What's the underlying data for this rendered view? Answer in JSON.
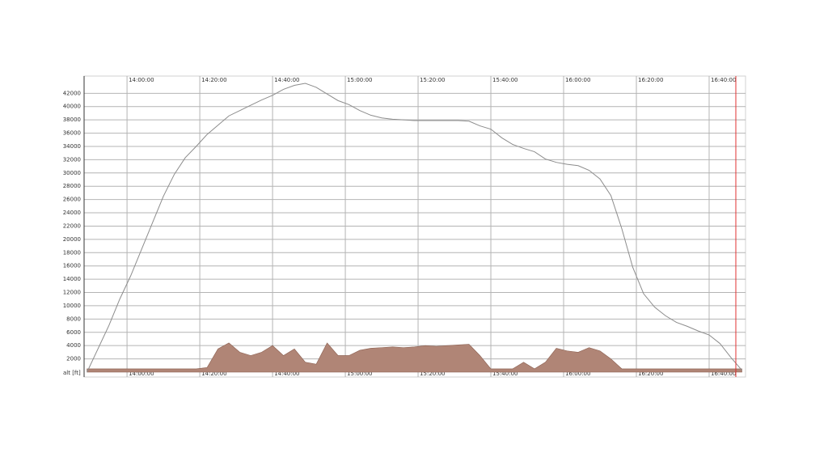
{
  "chart_data": {
    "type": "line",
    "y_label": "alt [ft]",
    "x": [
      "13:49:00",
      "13:52:00",
      "13:55:00",
      "13:58:00",
      "14:01:00",
      "14:04:00",
      "14:07:00",
      "14:10:00",
      "14:13:00",
      "14:16:00",
      "14:19:00",
      "14:22:00",
      "14:25:00",
      "14:28:00",
      "14:31:00",
      "14:34:00",
      "14:37:00",
      "14:40:00",
      "14:43:00",
      "14:46:00",
      "14:49:00",
      "14:52:00",
      "14:55:00",
      "14:58:00",
      "15:01:00",
      "15:04:00",
      "15:07:00",
      "15:10:00",
      "15:13:00",
      "15:16:00",
      "15:19:00",
      "15:22:00",
      "15:25:00",
      "15:28:00",
      "15:31:00",
      "15:34:00",
      "15:37:00",
      "15:40:00",
      "15:43:00",
      "15:46:00",
      "15:49:00",
      "15:52:00",
      "15:55:00",
      "15:58:00",
      "16:01:00",
      "16:04:00",
      "16:07:00",
      "16:10:00",
      "16:13:00",
      "16:16:00",
      "16:19:00",
      "16:22:00",
      "16:25:00",
      "16:28:00",
      "16:31:00",
      "16:34:00",
      "16:37:00",
      "16:40:00",
      "16:43:00",
      "16:46:00",
      "16:49:00"
    ],
    "series": [
      {
        "type": "area",
        "color": "#b08576",
        "values": [
          500,
          500,
          500,
          500,
          500,
          500,
          500,
          500,
          500,
          500,
          500,
          700,
          3500,
          4400,
          3000,
          2500,
          3000,
          4000,
          2500,
          3500,
          1500,
          1200,
          4400,
          2500,
          2500,
          3300,
          3600,
          3700,
          3800,
          3700,
          3800,
          4000,
          3900,
          4000,
          4100,
          4200,
          2500,
          500,
          500,
          500,
          1500,
          500,
          1500,
          3600,
          3200,
          3000,
          3700,
          3200,
          2000,
          500,
          500,
          500,
          500,
          500,
          500,
          500,
          500,
          500,
          500,
          500,
          500
        ]
      },
      {
        "type": "line",
        "color": "#8c8c8c",
        "values": [
          0,
          3500,
          7000,
          11000,
          14500,
          18500,
          22500,
          26500,
          29800,
          32300,
          34000,
          35800,
          37200,
          38600,
          39400,
          40200,
          41000,
          41700,
          42600,
          43200,
          43500,
          42900,
          41900,
          40900,
          40300,
          39400,
          38700,
          38300,
          38100,
          38000,
          37900,
          37900,
          37900,
          37900,
          37900,
          37800,
          37100,
          36600,
          35300,
          34300,
          33700,
          33200,
          32100,
          31600,
          31300,
          31100,
          30400,
          29100,
          26600,
          21600,
          15800,
          11800,
          9800,
          8500,
          7500,
          6900,
          6200,
          5600,
          4300,
          2200,
          300
        ]
      }
    ],
    "xlim": [
      "13:48:12",
      "16:50:00"
    ],
    "xticks": [
      "14:00:00",
      "14:20:00",
      "14:40:00",
      "15:00:00",
      "15:20:00",
      "15:40:00",
      "16:00:00",
      "16:20:00",
      "16:40:00"
    ],
    "ylim": [
      0,
      44600
    ],
    "yticks": [
      2000,
      4000,
      6000,
      8000,
      10000,
      12000,
      14000,
      16000,
      18000,
      20000,
      22000,
      24000,
      26000,
      28000,
      30000,
      32000,
      34000,
      36000,
      38000,
      40000,
      42000
    ],
    "grid": true
  }
}
